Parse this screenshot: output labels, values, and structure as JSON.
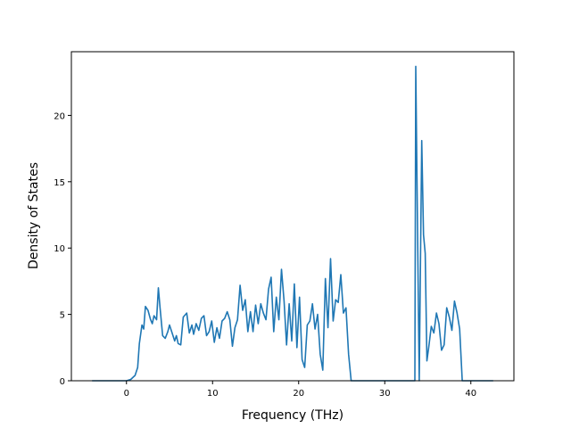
{
  "chart_data": {
    "type": "line",
    "title": "",
    "xlabel": "Frequency (THz)",
    "ylabel": "Density of States",
    "xlim": [
      -6.4,
      45.0
    ],
    "ylim": [
      0,
      24.8
    ],
    "xticks": [
      0,
      10,
      20,
      30,
      40
    ],
    "yticks": [
      0,
      5,
      10,
      15,
      20
    ],
    "grid": false,
    "legend": "none",
    "series": [
      {
        "color": "#1f77b4",
        "x": [
          -4.0,
          -3.0,
          -2.0,
          -1.0,
          0.0,
          0.5,
          1.0,
          1.3,
          1.5,
          1.8,
          2.0,
          2.2,
          2.5,
          2.8,
          3.0,
          3.2,
          3.5,
          3.7,
          3.9,
          4.2,
          4.5,
          4.8,
          5.0,
          5.3,
          5.6,
          5.8,
          6.0,
          6.3,
          6.6,
          7.0,
          7.3,
          7.6,
          7.8,
          8.1,
          8.4,
          8.7,
          9.0,
          9.3,
          9.6,
          9.9,
          10.2,
          10.5,
          10.8,
          11.1,
          11.4,
          11.7,
          12.0,
          12.3,
          12.6,
          12.9,
          13.2,
          13.5,
          13.8,
          14.1,
          14.4,
          14.7,
          15.0,
          15.3,
          15.6,
          15.9,
          16.2,
          16.5,
          16.8,
          17.1,
          17.4,
          17.7,
          18.0,
          18.3,
          18.6,
          18.9,
          19.2,
          19.5,
          19.8,
          20.1,
          20.4,
          20.7,
          21.0,
          21.3,
          21.6,
          21.9,
          22.2,
          22.5,
          22.8,
          23.1,
          23.4,
          23.7,
          24.0,
          24.3,
          24.6,
          24.9,
          25.2,
          25.5,
          25.8,
          26.1,
          26.5,
          30.0,
          33.5,
          33.6,
          33.8,
          34.0,
          34.3,
          34.5,
          34.7,
          34.9,
          35.1,
          35.4,
          35.7,
          36.0,
          36.3,
          36.6,
          36.9,
          37.2,
          37.5,
          37.8,
          38.1,
          38.4,
          38.7,
          39.0,
          39.5,
          42.6
        ],
        "y": [
          0,
          0,
          0,
          0,
          0,
          0.1,
          0.4,
          1.0,
          2.8,
          4.2,
          3.9,
          5.6,
          5.3,
          4.6,
          4.3,
          4.9,
          4.6,
          7.0,
          5.5,
          3.4,
          3.2,
          3.7,
          4.2,
          3.6,
          3.0,
          3.4,
          2.8,
          2.7,
          4.8,
          5.1,
          3.6,
          4.2,
          3.5,
          4.3,
          3.8,
          4.7,
          4.9,
          3.4,
          3.7,
          4.5,
          2.9,
          4.0,
          3.2,
          4.5,
          4.7,
          5.2,
          4.6,
          2.6,
          4.0,
          4.6,
          7.2,
          5.3,
          6.1,
          3.7,
          5.2,
          3.7,
          5.7,
          4.3,
          5.8,
          5.1,
          4.6,
          6.9,
          7.8,
          3.7,
          6.3,
          4.6,
          8.4,
          6.0,
          2.7,
          5.8,
          3.0,
          7.3,
          2.5,
          6.3,
          1.6,
          1.0,
          4.2,
          4.5,
          5.8,
          3.9,
          5.0,
          2.0,
          0.8,
          7.7,
          4.0,
          9.2,
          4.5,
          6.1,
          5.9,
          8.0,
          5.1,
          5.5,
          2.0,
          0,
          0,
          0,
          0,
          23.7,
          12.0,
          0,
          18.1,
          11.0,
          9.6,
          1.5,
          2.5,
          4.1,
          3.6,
          5.1,
          4.3,
          2.3,
          2.7,
          5.5,
          4.8,
          3.8,
          6.0,
          5.1,
          3.9,
          0,
          0,
          0
        ]
      }
    ]
  }
}
